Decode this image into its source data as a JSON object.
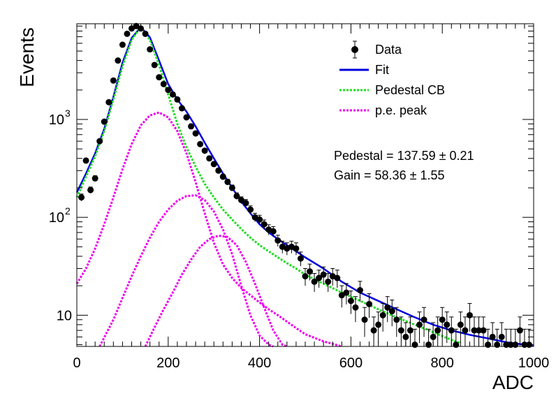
{
  "chart_data": {
    "type": "scatter",
    "xlabel": "ADC",
    "ylabel": "Events",
    "xlim": [
      0,
      1000
    ],
    "ylim": [
      4.8,
      9500
    ],
    "yscale": "log",
    "grid": false,
    "legend_position": "top-right",
    "x_ticks": [
      0,
      200,
      400,
      600,
      800,
      1000
    ],
    "y_ticks": [
      {
        "value": 10,
        "label": "10"
      },
      {
        "value": 100,
        "label": "10",
        "exp": "2"
      },
      {
        "value": 1000,
        "label": "10",
        "exp": "3"
      }
    ],
    "legend": [
      {
        "label": "Data",
        "style": "marker",
        "color": "#000000"
      },
      {
        "label": "Fit",
        "style": "line",
        "color": "#0000dd"
      },
      {
        "label": "Pedestal CB",
        "style": "dotted",
        "color": "#22dd22"
      },
      {
        "label": "p.e. peak",
        "style": "dotted",
        "color": "#ee00ee"
      }
    ],
    "annotations": [
      "Pedestal = 137.59 ± 0.21",
      "Gain = 58.36 ± 1.55"
    ],
    "data_points": {
      "x": [
        10,
        20,
        30,
        40,
        50,
        60,
        70,
        80,
        90,
        100,
        110,
        120,
        130,
        140,
        150,
        160,
        170,
        180,
        190,
        200,
        210,
        220,
        230,
        240,
        250,
        260,
        270,
        280,
        290,
        300,
        310,
        320,
        330,
        340,
        350,
        360,
        370,
        380,
        390,
        400,
        410,
        420,
        430,
        440,
        450,
        460,
        470,
        480,
        490,
        500,
        510,
        520,
        530,
        540,
        550,
        560,
        570,
        580,
        590,
        600,
        610,
        620,
        630,
        640,
        650,
        660,
        670,
        680,
        690,
        700,
        710,
        720,
        730,
        740,
        750,
        760,
        770,
        780,
        790,
        800,
        810,
        820,
        830,
        840,
        850,
        860,
        870,
        880,
        890,
        900,
        910,
        920,
        930,
        940,
        950,
        960,
        970,
        980,
        990
      ],
      "y": [
        160,
        380,
        190,
        250,
        600,
        950,
        1500,
        2500,
        4000,
        5800,
        7500,
        8500,
        9000,
        8500,
        7500,
        5200,
        3600,
        2700,
        2300,
        2000,
        1800,
        1600,
        1300,
        1050,
        850,
        720,
        560,
        480,
        400,
        350,
        300,
        260,
        230,
        200,
        165,
        150,
        140,
        120,
        100,
        95,
        85,
        75,
        72,
        58,
        50,
        48,
        50,
        48,
        38,
        25,
        28,
        22,
        24,
        26,
        22,
        25,
        24,
        16,
        17,
        14,
        12,
        18,
        9,
        13,
        7,
        8,
        10,
        12,
        11,
        9,
        7,
        6,
        7,
        5,
        8,
        9,
        5,
        6,
        7,
        9,
        8,
        7,
        5,
        8,
        7,
        10,
        7,
        7,
        7,
        5,
        6,
        5,
        6,
        5,
        5,
        5,
        7,
        5,
        5
      ],
      "err": [
        13,
        20,
        14,
        16,
        25,
        31,
        39,
        50,
        63,
        76,
        87,
        92,
        95,
        92,
        87,
        72,
        60,
        52,
        48,
        45,
        42,
        40,
        36,
        32,
        29,
        27,
        24,
        22,
        20,
        19,
        17,
        16,
        15,
        14,
        13,
        12,
        12,
        11,
        10,
        10,
        9,
        9,
        8.5,
        7.6,
        7.1,
        6.9,
        7.1,
        6.9,
        6.2,
        5,
        5.3,
        4.7,
        4.9,
        5.1,
        4.7,
        5,
        4.9,
        4,
        4.1,
        3.7,
        3.5,
        4.2,
        3,
        3.6,
        2.6,
        2.8,
        3.2,
        3.5,
        3.3,
        3,
        2.6,
        2.4,
        2.6,
        2.2,
        2.8,
        3,
        2.2,
        2.4,
        2.6,
        3,
        2.8,
        2.6,
        2.2,
        2.8,
        2.6,
        3.2,
        2.6,
        2.6,
        2.6,
        2.2,
        2.4,
        2.2,
        2.4,
        2.2,
        2.2,
        2.2,
        2.6,
        2.2,
        2.2
      ]
    },
    "curves": [
      {
        "name": "Fit",
        "color": "#0000dd",
        "x": [
          0,
          20,
          40,
          60,
          80,
          100,
          120,
          140,
          160,
          180,
          200,
          220,
          240,
          260,
          280,
          300,
          320,
          340,
          360,
          380,
          400,
          420,
          440,
          460,
          480,
          500,
          540,
          580,
          620,
          660,
          700,
          740,
          780,
          820,
          860,
          900,
          940,
          980,
          1000
        ],
        "y": [
          180,
          280,
          450,
          800,
          1700,
          3800,
          6800,
          8800,
          6900,
          4000,
          2300,
          1600,
          1200,
          850,
          580,
          400,
          280,
          200,
          145,
          110,
          85,
          70,
          60,
          52,
          45,
          39,
          30,
          22,
          17,
          14,
          11.5,
          9.5,
          8,
          7,
          6.3,
          5.8,
          5.3,
          5,
          4.9
        ]
      },
      {
        "name": "Pedestal CB",
        "color": "#22dd22",
        "x": [
          0,
          20,
          40,
          60,
          80,
          100,
          120,
          140,
          160,
          180,
          200,
          220,
          240,
          260,
          280,
          300,
          320,
          340,
          360,
          380,
          400,
          420,
          440,
          460,
          480,
          500,
          540,
          580,
          620,
          660,
          700,
          740,
          780,
          820,
          840
        ],
        "y": [
          160,
          260,
          420,
          760,
          1600,
          3500,
          6500,
          8800,
          6500,
          3600,
          1800,
          900,
          520,
          330,
          220,
          160,
          120,
          95,
          76,
          62,
          52,
          45,
          39,
          34,
          30,
          26,
          21,
          17,
          14,
          11.5,
          9.5,
          8,
          6.7,
          5.6,
          5.2
        ]
      },
      {
        "name": "p.e. peak 1",
        "color": "#ee00ee",
        "x": [
          0,
          20,
          40,
          60,
          80,
          100,
          120,
          140,
          160,
          180,
          200,
          220,
          240,
          260,
          280,
          300,
          320,
          340,
          360,
          380,
          400,
          420,
          440,
          460,
          480,
          500,
          540,
          560,
          580
        ],
        "y": [
          21,
          30,
          48,
          85,
          160,
          310,
          560,
          870,
          1100,
          1180,
          1050,
          760,
          450,
          230,
          110,
          55,
          33,
          24,
          19,
          16,
          13.5,
          11.5,
          10,
          8.6,
          7.4,
          6.4,
          5.4,
          5.1,
          4.8
        ]
      },
      {
        "name": "p.e. peak 2",
        "color": "#ee00ee",
        "x": [
          50,
          80,
          100,
          120,
          140,
          160,
          180,
          200,
          220,
          240,
          260,
          280,
          300,
          320,
          340,
          360,
          380,
          400,
          420,
          430
        ],
        "y": [
          4.8,
          9,
          15,
          25,
          40,
          62,
          90,
          120,
          148,
          165,
          168,
          150,
          115,
          75,
          42,
          20,
          10,
          6.2,
          5,
          4.8
        ]
      },
      {
        "name": "p.e. peak 3",
        "color": "#ee00ee",
        "x": [
          150,
          170,
          190,
          210,
          230,
          250,
          270,
          290,
          310,
          330,
          350,
          370,
          390,
          410,
          430,
          450,
          460
        ],
        "y": [
          4.8,
          7.5,
          11.5,
          17,
          26,
          37,
          50,
          60,
          65,
          63,
          52,
          35,
          21,
          12,
          7,
          5,
          4.8
        ]
      }
    ]
  }
}
